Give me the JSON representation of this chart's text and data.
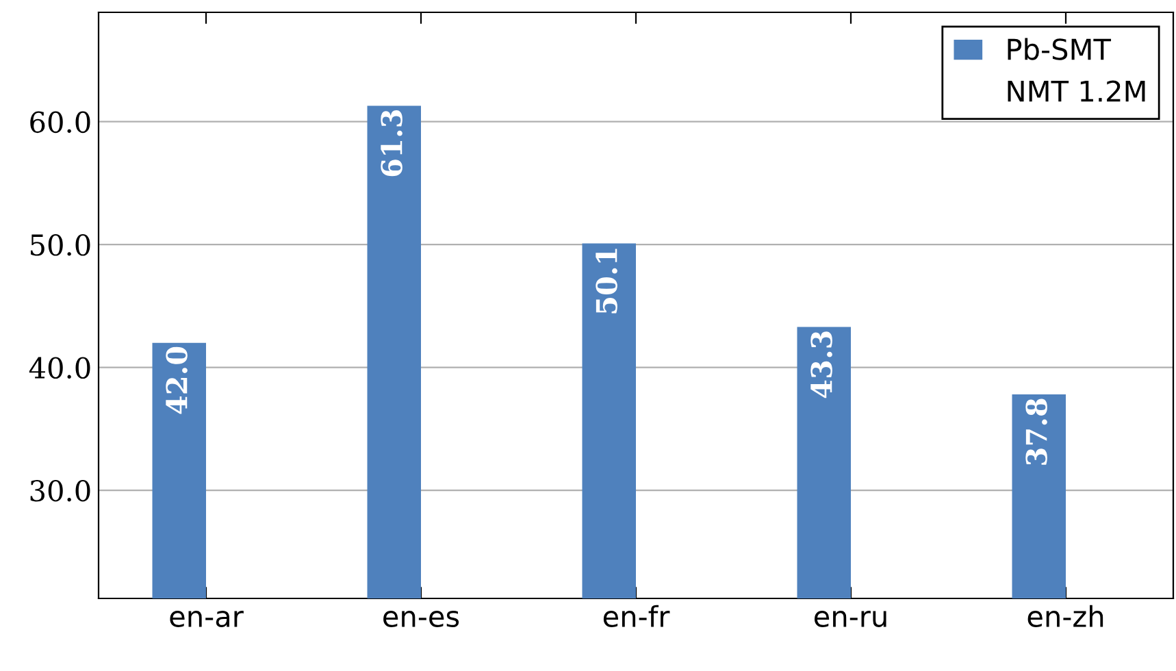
{
  "chart_data": {
    "type": "bar",
    "categories": [
      "en-ar",
      "en-es",
      "en-fr",
      "en-ru",
      "en-zh"
    ],
    "series": [
      {
        "name": "Pb-SMT",
        "color": "#4f81bd",
        "values": [
          42.0,
          61.3,
          50.1,
          43.3,
          37.8
        ],
        "value_labels": [
          "42.0",
          "61.3",
          "50.1",
          "43.3",
          "37.8"
        ]
      },
      {
        "name": "NMT 1.2M",
        "values": [
          null,
          null,
          null,
          null,
          null
        ]
      }
    ],
    "ylim": [
      21.2,
      68.9
    ],
    "yticks": [
      {
        "value": 30,
        "label": "30.0"
      },
      {
        "value": 40,
        "label": "40.0"
      },
      {
        "value": 50,
        "label": "50.0"
      },
      {
        "value": 60,
        "label": "60.0"
      }
    ],
    "grid": "y",
    "legend": "top right"
  }
}
